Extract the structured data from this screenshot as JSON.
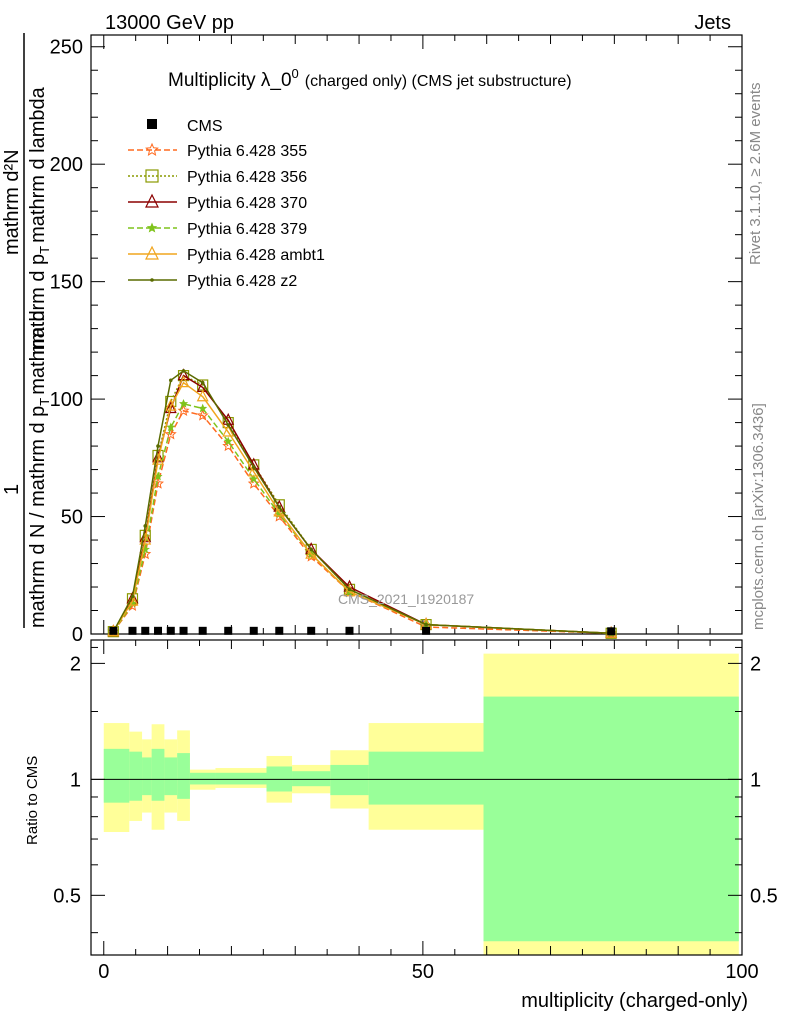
{
  "header": {
    "left": "13000 GeV pp",
    "right": "Jets"
  },
  "side_labels": {
    "rivet": "Rivet 3.1.10, ≥ 2.6M events",
    "mcplots": "mcplots.cern.ch [arXiv:1306.3436]"
  },
  "main": {
    "title_main": "Multiplicity λ_0",
    "title_sup": "0",
    "title_rest": "(charged only) (CMS jet substructure)",
    "ylabel_line1": "mathrm d N / mathrm d p",
    "ylabel_T": "T",
    "ylabel_line2": "mathrm d",
    "ylabel_num": "1",
    "ylabel_inner": "mathrm d N / mathrm d p",
    "ylabel_top": "mathrm d²N",
    "ylabel_top_rest": "mathrm d p",
    "ylabel_top_T": "T",
    "ylabel_top_end": "mathrm d lambda",
    "watermark": "CMS_2021_I1920187"
  },
  "ratio": {
    "ylabel": "Ratio to CMS"
  },
  "xlabel": "multiplicity (charged-only)",
  "chart_data": {
    "type": "line",
    "x_range": [
      -2,
      100
    ],
    "main_ylim": [
      0,
      255
    ],
    "main_yticks": [
      0,
      50,
      100,
      150,
      200,
      250
    ],
    "ratio_ylim": [
      0.35,
      2.3
    ],
    "ratio_yticks": [
      0.5,
      1,
      2
    ],
    "xticks": [
      0,
      50,
      100
    ],
    "cms_points": [
      {
        "x": 1.5,
        "y": 0.5
      },
      {
        "x": 4.5,
        "y": 0.5
      },
      {
        "x": 6.5,
        "y": 0.5
      },
      {
        "x": 8.5,
        "y": 0.5
      },
      {
        "x": 10.5,
        "y": 0.5
      },
      {
        "x": 12.5,
        "y": 0.5
      },
      {
        "x": 15.5,
        "y": 0.5
      },
      {
        "x": 19.5,
        "y": 0.5
      },
      {
        "x": 23.5,
        "y": 0.5
      },
      {
        "x": 27.5,
        "y": 0.5
      },
      {
        "x": 32.5,
        "y": 0.5
      },
      {
        "x": 38.5,
        "y": 0.5
      },
      {
        "x": 50.5,
        "y": 0.5
      },
      {
        "x": 79.5,
        "y": 0.3
      }
    ],
    "series": [
      {
        "name": "Pythia 6.428 355",
        "color": "#ff6a1f",
        "dash": "6,3",
        "marker": "star",
        "values": [
          [
            1.5,
            1
          ],
          [
            4.5,
            12
          ],
          [
            6.5,
            34
          ],
          [
            8.5,
            64
          ],
          [
            10.5,
            85
          ],
          [
            12.5,
            95
          ],
          [
            15.5,
            93
          ],
          [
            19.5,
            80
          ],
          [
            23.5,
            64
          ],
          [
            27.5,
            50
          ],
          [
            32.5,
            33
          ],
          [
            38.5,
            18
          ],
          [
            50.5,
            3
          ],
          [
            79.5,
            0.3
          ]
        ]
      },
      {
        "name": "Pythia 6.428 356",
        "color": "#8a9a00",
        "dash": "2,2",
        "marker": "square",
        "values": [
          [
            1.5,
            1
          ],
          [
            4.5,
            15
          ],
          [
            6.5,
            42
          ],
          [
            8.5,
            76
          ],
          [
            10.5,
            99
          ],
          [
            12.5,
            110
          ],
          [
            15.5,
            106
          ],
          [
            19.5,
            90
          ],
          [
            23.5,
            72
          ],
          [
            27.5,
            55
          ],
          [
            32.5,
            36
          ],
          [
            38.5,
            19
          ],
          [
            50.5,
            4
          ],
          [
            79.5,
            0.3
          ]
        ]
      },
      {
        "name": "Pythia 6.428 370",
        "color": "#8b0000",
        "dash": "",
        "marker": "triangle",
        "values": [
          [
            1.5,
            1
          ],
          [
            4.5,
            15
          ],
          [
            6.5,
            41
          ],
          [
            8.5,
            75
          ],
          [
            10.5,
            96
          ],
          [
            12.5,
            110
          ],
          [
            15.5,
            105
          ],
          [
            19.5,
            91
          ],
          [
            23.5,
            72
          ],
          [
            27.5,
            54
          ],
          [
            32.5,
            36
          ],
          [
            38.5,
            20
          ],
          [
            50.5,
            4
          ],
          [
            79.5,
            0.3
          ]
        ]
      },
      {
        "name": "Pythia 6.428 379",
        "color": "#7fc31c",
        "dash": "6,3",
        "marker": "smallstar",
        "values": [
          [
            1.5,
            1
          ],
          [
            4.5,
            13
          ],
          [
            6.5,
            36
          ],
          [
            8.5,
            67
          ],
          [
            10.5,
            88
          ],
          [
            12.5,
            98
          ],
          [
            15.5,
            96
          ],
          [
            19.5,
            82
          ],
          [
            23.5,
            66
          ],
          [
            27.5,
            51
          ],
          [
            32.5,
            34
          ],
          [
            38.5,
            18
          ],
          [
            50.5,
            4
          ],
          [
            79.5,
            0.3
          ]
        ]
      },
      {
        "name": "Pythia 6.428 ambt1",
        "color": "#f0a51e",
        "dash": "",
        "marker": "triangle",
        "values": [
          [
            1.5,
            1
          ],
          [
            4.5,
            14
          ],
          [
            6.5,
            40
          ],
          [
            8.5,
            74
          ],
          [
            10.5,
            97
          ],
          [
            12.5,
            107
          ],
          [
            15.5,
            101
          ],
          [
            19.5,
            86
          ],
          [
            23.5,
            69
          ],
          [
            27.5,
            52
          ],
          [
            32.5,
            34
          ],
          [
            38.5,
            18
          ],
          [
            50.5,
            4
          ],
          [
            79.5,
            0.3
          ]
        ]
      },
      {
        "name": "Pythia 6.428 z2",
        "color": "#5a6b00",
        "dash": "",
        "marker": "dot",
        "values": [
          [
            1.5,
            1
          ],
          [
            4.5,
            16
          ],
          [
            6.5,
            46
          ],
          [
            8.5,
            80
          ],
          [
            10.5,
            108
          ],
          [
            12.5,
            112
          ],
          [
            15.5,
            107
          ],
          [
            19.5,
            89
          ],
          [
            23.5,
            71
          ],
          [
            27.5,
            54
          ],
          [
            32.5,
            36
          ],
          [
            38.5,
            19
          ],
          [
            50.5,
            4
          ],
          [
            79.5,
            0.3
          ]
        ]
      }
    ],
    "cms_legend": "CMS",
    "ratio_bands": [
      {
        "x0": 0,
        "x1": 4,
        "yellow": [
          0.73,
          1.4
        ],
        "green": [
          0.87,
          1.2
        ]
      },
      {
        "x0": 4,
        "x1": 6,
        "yellow": [
          0.78,
          1.33
        ],
        "green": [
          0.88,
          1.18
        ]
      },
      {
        "x0": 6,
        "x1": 7.5,
        "yellow": [
          0.82,
          1.27
        ],
        "green": [
          0.91,
          1.14
        ]
      },
      {
        "x0": 7.5,
        "x1": 9.5,
        "yellow": [
          0.74,
          1.39
        ],
        "green": [
          0.88,
          1.2
        ]
      },
      {
        "x0": 9.5,
        "x1": 11.5,
        "yellow": [
          0.82,
          1.27
        ],
        "green": [
          0.91,
          1.14
        ]
      },
      {
        "x0": 11.5,
        "x1": 13.5,
        "yellow": [
          0.78,
          1.34
        ],
        "green": [
          0.89,
          1.17
        ]
      },
      {
        "x0": 13.5,
        "x1": 17.5,
        "yellow": [
          0.94,
          1.06
        ],
        "green": [
          0.97,
          1.04
        ]
      },
      {
        "x0": 17.5,
        "x1": 25.5,
        "yellow": [
          0.95,
          1.07
        ],
        "green": [
          0.97,
          1.04
        ]
      },
      {
        "x0": 25.5,
        "x1": 29.5,
        "yellow": [
          0.87,
          1.15
        ],
        "green": [
          0.93,
          1.08
        ]
      },
      {
        "x0": 29.5,
        "x1": 35.5,
        "yellow": [
          0.92,
          1.09
        ],
        "green": [
          0.96,
          1.05
        ]
      },
      {
        "x0": 35.5,
        "x1": 41.5,
        "yellow": [
          0.84,
          1.19
        ],
        "green": [
          0.91,
          1.09
        ]
      },
      {
        "x0": 41.5,
        "x1": 59.5,
        "yellow": [
          0.74,
          1.4
        ],
        "green": [
          0.86,
          1.18
        ]
      },
      {
        "x0": 59.5,
        "x1": 99.5,
        "yellow": [
          0.35,
          2.12
        ],
        "green": [
          0.38,
          1.64
        ]
      }
    ]
  },
  "colors": {
    "band_yellow": "#ffff99",
    "band_green": "#99ff99"
  }
}
